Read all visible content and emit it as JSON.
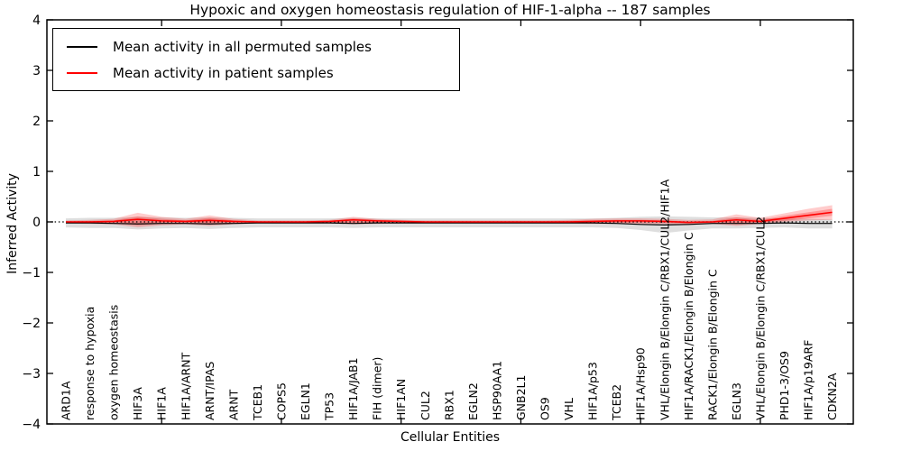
{
  "title": "Hypoxic and oxygen homeostasis regulation of HIF-1-alpha -- 187 samples",
  "chart_data": {
    "type": "line",
    "title": "Hypoxic and oxygen homeostasis regulation of HIF-1-alpha -- 187 samples",
    "xlabel": "Cellular Entities",
    "ylabel": "Inferred Activity",
    "ylim": [
      -4,
      4
    ],
    "ytick_values": [
      4,
      3,
      2,
      1,
      0,
      -1,
      -2,
      -3,
      -4
    ],
    "ytick_labels": [
      "4",
      "3",
      "2",
      "1",
      "0",
      "−1",
      "−2",
      "−3",
      "−4"
    ],
    "xtick_major_categories": [
      5,
      10,
      15,
      20,
      25,
      30
    ],
    "grid": false,
    "legend_position": "upper left",
    "legend": [
      {
        "label": "Mean activity in all permuted samples",
        "color": "#000000"
      },
      {
        "label": "Mean activity in patient samples",
        "color": "#ff0000"
      }
    ],
    "zero_line_value": 0,
    "categories": [
      "ARD1A",
      "response to hypoxia",
      "oxygen homeostasis",
      "HIF3A",
      "HIF1A",
      "HIF1A/ARNT",
      "ARNT/IPAS",
      "ARNT",
      "TCEB1",
      "COPS5",
      "EGLN1",
      "TP53",
      "HIF1A/JAB1",
      "FIH (dimer)",
      "HIF1AN",
      "CUL2",
      "RBX1",
      "EGLN2",
      "HSP90AA1",
      "GNB2L1",
      "OS9",
      "VHL",
      "HIF1A/p53",
      "TCEB2",
      "HIF1A/Hsp90",
      "VHL/Elongin B/Elongin C/RBX1/CUL2/HIF1A",
      "HIF1A/RACK1/Elongin B/Elongin C",
      "RACK1/Elongin B/Elongin C",
      "EGLN3",
      "VHL/Elongin B/Elongin C/RBX1/CUL2",
      "PHD1-3/OS9",
      "HIF1A/p19ARF",
      "CDKN2A"
    ],
    "series": [
      {
        "name": "Mean activity in all permuted samples",
        "color": "#000000",
        "values": [
          -0.02,
          -0.02,
          -0.03,
          -0.04,
          -0.03,
          -0.03,
          -0.04,
          -0.03,
          -0.02,
          -0.02,
          -0.02,
          -0.02,
          -0.03,
          -0.02,
          -0.02,
          -0.02,
          -0.02,
          -0.02,
          -0.02,
          -0.02,
          -0.02,
          -0.02,
          -0.02,
          -0.03,
          -0.05,
          -0.06,
          -0.05,
          -0.03,
          -0.03,
          -0.03,
          -0.02,
          -0.03,
          -0.03
        ]
      },
      {
        "name": "Mean activity in patient samples",
        "color": "#ff0000",
        "values": [
          0.0,
          0.0,
          0.01,
          0.05,
          0.02,
          0.01,
          0.03,
          0.01,
          0.0,
          0.0,
          0.0,
          0.01,
          0.04,
          0.02,
          0.01,
          0.0,
          0.0,
          0.0,
          0.0,
          0.0,
          0.0,
          0.0,
          0.01,
          0.02,
          0.02,
          0.01,
          -0.01,
          0.0,
          0.04,
          0.01,
          0.07,
          0.13,
          0.19
        ]
      }
    ],
    "bands": [
      {
        "name": "permuted-samples-std-band",
        "color": "#999999",
        "opacity": 0.32,
        "upper": [
          0.07,
          0.08,
          0.08,
          0.1,
          0.09,
          0.08,
          0.09,
          0.08,
          0.07,
          0.07,
          0.07,
          0.07,
          0.08,
          0.07,
          0.07,
          0.07,
          0.07,
          0.07,
          0.07,
          0.07,
          0.07,
          0.07,
          0.07,
          0.08,
          0.1,
          0.11,
          0.1,
          0.09,
          0.09,
          0.08,
          0.07,
          0.06,
          0.05
        ],
        "lower": [
          -0.11,
          -0.12,
          -0.12,
          -0.15,
          -0.13,
          -0.12,
          -0.14,
          -0.12,
          -0.11,
          -0.11,
          -0.11,
          -0.11,
          -0.12,
          -0.11,
          -0.11,
          -0.11,
          -0.11,
          -0.11,
          -0.11,
          -0.11,
          -0.11,
          -0.11,
          -0.11,
          -0.12,
          -0.16,
          -0.22,
          -0.17,
          -0.13,
          -0.13,
          -0.12,
          -0.11,
          -0.13,
          -0.13
        ]
      },
      {
        "name": "patient-samples-outer-band",
        "color": "#ff0000",
        "opacity": 0.2,
        "upper": [
          0.03,
          0.04,
          0.06,
          0.18,
          0.1,
          0.06,
          0.13,
          0.06,
          0.03,
          0.03,
          0.03,
          0.04,
          0.1,
          0.06,
          0.04,
          0.03,
          0.03,
          0.03,
          0.03,
          0.03,
          0.03,
          0.04,
          0.06,
          0.07,
          0.07,
          0.06,
          0.04,
          0.05,
          0.15,
          0.08,
          0.17,
          0.26,
          0.33
        ],
        "lower": [
          -0.03,
          -0.04,
          -0.05,
          -0.11,
          -0.07,
          -0.05,
          -0.08,
          -0.05,
          -0.03,
          -0.03,
          -0.03,
          -0.03,
          -0.05,
          -0.04,
          -0.03,
          -0.03,
          -0.03,
          -0.03,
          -0.03,
          -0.03,
          -0.03,
          -0.03,
          -0.04,
          -0.04,
          -0.04,
          -0.04,
          -0.06,
          -0.04,
          -0.08,
          -0.04,
          0.0,
          0.03,
          0.04
        ]
      },
      {
        "name": "patient-samples-inner-band",
        "color": "#ff0000",
        "opacity": 0.25,
        "upper": [
          0.01,
          0.02,
          0.03,
          0.11,
          0.06,
          0.03,
          0.08,
          0.03,
          0.01,
          0.01,
          0.01,
          0.02,
          0.07,
          0.04,
          0.02,
          0.01,
          0.01,
          0.01,
          0.01,
          0.01,
          0.01,
          0.02,
          0.03,
          0.04,
          0.04,
          0.03,
          0.01,
          0.02,
          0.09,
          0.04,
          0.12,
          0.19,
          0.26
        ],
        "lower": [
          -0.01,
          -0.02,
          -0.02,
          -0.07,
          -0.04,
          -0.02,
          -0.05,
          -0.02,
          -0.01,
          -0.01,
          -0.01,
          -0.01,
          -0.03,
          -0.02,
          -0.01,
          -0.01,
          -0.01,
          -0.01,
          -0.01,
          -0.01,
          -0.01,
          -0.01,
          -0.02,
          -0.02,
          -0.02,
          -0.02,
          -0.03,
          -0.02,
          -0.05,
          -0.02,
          0.02,
          0.07,
          0.12
        ]
      }
    ]
  }
}
